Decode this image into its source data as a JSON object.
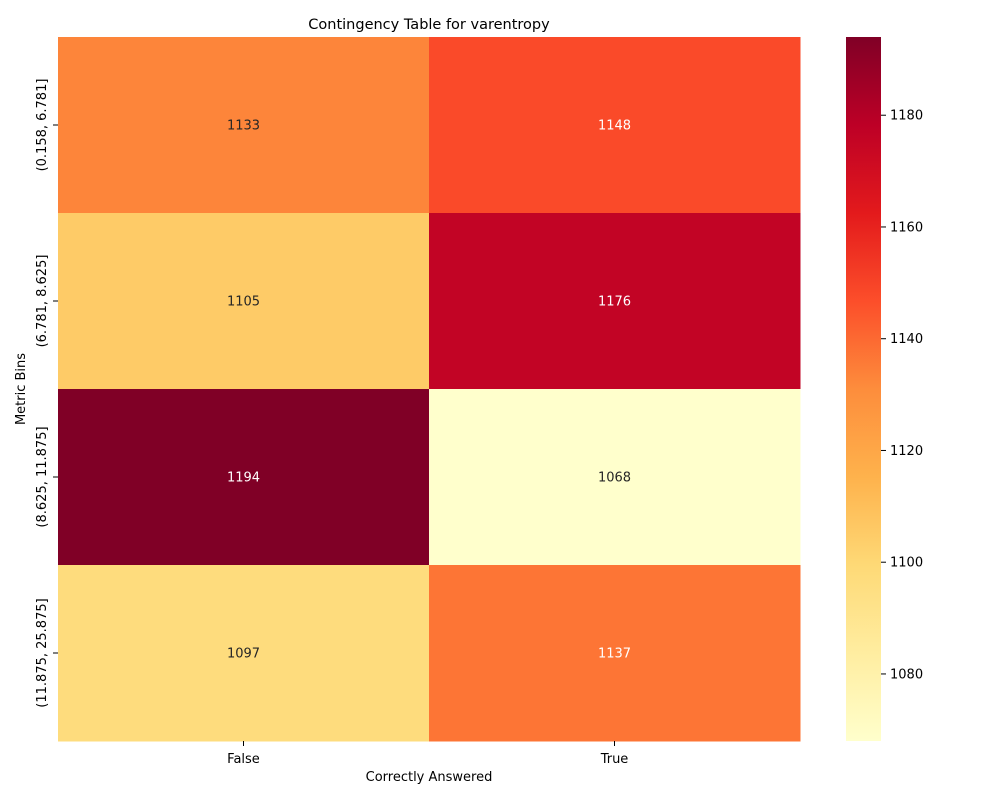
{
  "chart_data": {
    "type": "heatmap",
    "title": "Contingency Table for varentropy",
    "xlabel": "Correctly Answered",
    "ylabel": "Metric Bins",
    "x_categories": [
      "False",
      "True"
    ],
    "y_categories": [
      "(0.158, 6.781]",
      "(6.781, 8.625]",
      "(8.625, 11.875]",
      "(11.875, 25.875]"
    ],
    "values": [
      [
        1133,
        1148
      ],
      [
        1105,
        1176
      ],
      [
        1194,
        1068
      ],
      [
        1097,
        1137
      ]
    ],
    "colorbar": {
      "colormap": "YlOrRd",
      "min": 1068,
      "max": 1194,
      "ticks": [
        "1080",
        "1100",
        "1120",
        "1140",
        "1160",
        "1180"
      ]
    },
    "grid": false,
    "legend": "colorbar-right"
  }
}
